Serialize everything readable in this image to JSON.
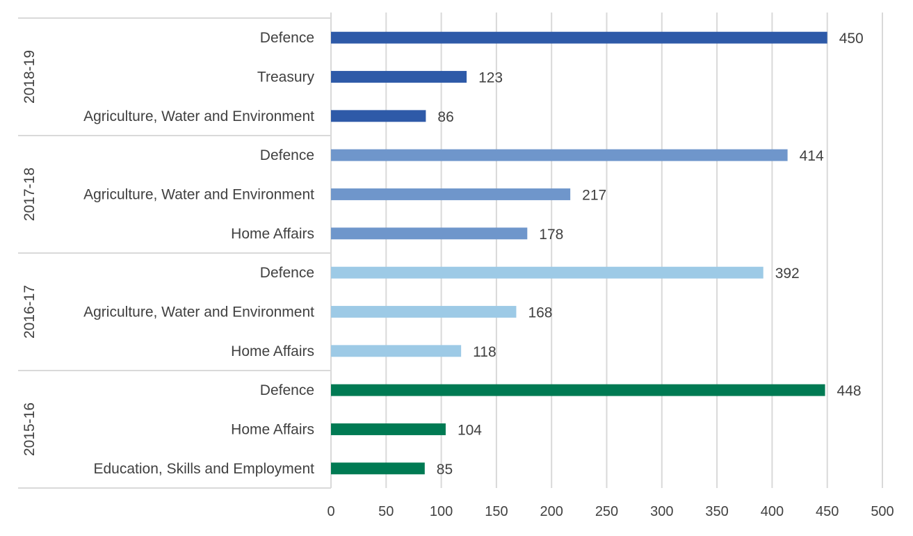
{
  "chart_data": {
    "type": "bar",
    "orientation": "horizontal",
    "title": "",
    "xlabel": "",
    "ylabel": "",
    "xlim": [
      0,
      500
    ],
    "x_ticks": [
      0,
      50,
      100,
      150,
      200,
      250,
      300,
      350,
      400,
      450,
      500
    ],
    "grid": "vertical",
    "legend": "none",
    "groups": [
      {
        "name": "2018-19",
        "color": "#2E5AA8",
        "bars": [
          {
            "label": "Defence",
            "value": 450
          },
          {
            "label": "Treasury",
            "value": 123
          },
          {
            "label": "Agriculture, Water and Environment",
            "value": 86
          }
        ]
      },
      {
        "name": "2017-18",
        "color": "#6F96CB",
        "bars": [
          {
            "label": "Defence",
            "value": 414
          },
          {
            "label": "Agriculture, Water and Environment",
            "value": 217
          },
          {
            "label": "Home Affairs",
            "value": 178
          }
        ]
      },
      {
        "name": "2016-17",
        "color": "#9DCAE6",
        "bars": [
          {
            "label": "Defence",
            "value": 392
          },
          {
            "label": "Agriculture, Water and Environment",
            "value": 168
          },
          {
            "label": "Home Affairs",
            "value": 118
          }
        ]
      },
      {
        "name": "2015-16",
        "color": "#007A53",
        "bars": [
          {
            "label": "Defence",
            "value": 448
          },
          {
            "label": "Home Affairs",
            "value": 104
          },
          {
            "label": "Education, Skills and Employment",
            "value": 85
          }
        ]
      }
    ]
  }
}
